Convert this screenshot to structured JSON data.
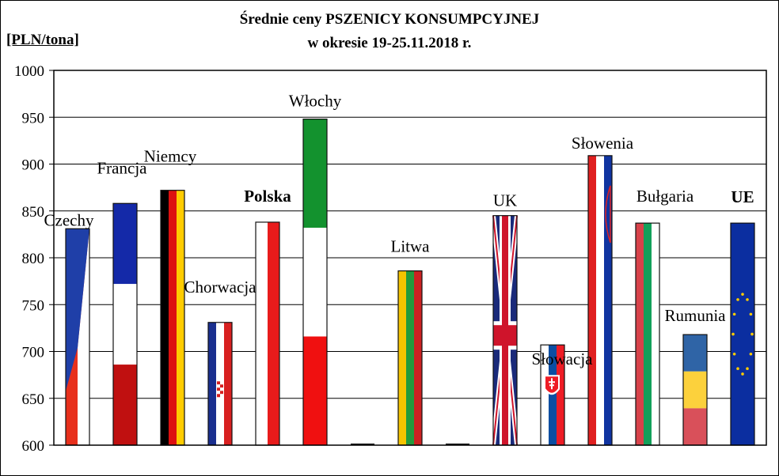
{
  "chart_data": {
    "type": "bar",
    "title": "Średnie ceny PSZENICY  KONSUMPCYJNEJ",
    "subtitle": "w okresie  19-25.11.2018 r.",
    "ylabel": "[PLN/tona]",
    "xlabel": "",
    "ylim": [
      600,
      1000
    ],
    "yticks": [
      600,
      650,
      700,
      750,
      800,
      850,
      900,
      950,
      1000
    ],
    "grid": true,
    "bars": [
      {
        "label": "Czechy",
        "value": 831,
        "flag": "cz"
      },
      {
        "label": "Francja",
        "value": 858,
        "flag": "fr"
      },
      {
        "label": "Niemcy",
        "value": 872,
        "flag": "de"
      },
      {
        "label": "Chorwacja",
        "value": 731,
        "flag": "hr"
      },
      {
        "label": "Polska",
        "value": 838,
        "flag": "pl",
        "bold": true
      },
      {
        "label": "Włochy",
        "value": 948,
        "flag": "it"
      },
      {
        "label": "",
        "value": 600,
        "flag": "none"
      },
      {
        "label": "Litwa",
        "value": 786,
        "flag": "lt"
      },
      {
        "label": "",
        "value": 600,
        "flag": "none"
      },
      {
        "label": "UK",
        "value": 845,
        "flag": "uk"
      },
      {
        "label": "Słowacja",
        "value": 707,
        "flag": "sk"
      },
      {
        "label": "Słowenia",
        "value": 909,
        "flag": "si"
      },
      {
        "label": "Bułgaria",
        "value": 837,
        "flag": "bg"
      },
      {
        "label": "Rumunia",
        "value": 718,
        "flag": "ro"
      },
      {
        "label": "UE",
        "value": 837,
        "flag": "eu",
        "bold": true,
        "color": "#cc0000"
      }
    ]
  }
}
